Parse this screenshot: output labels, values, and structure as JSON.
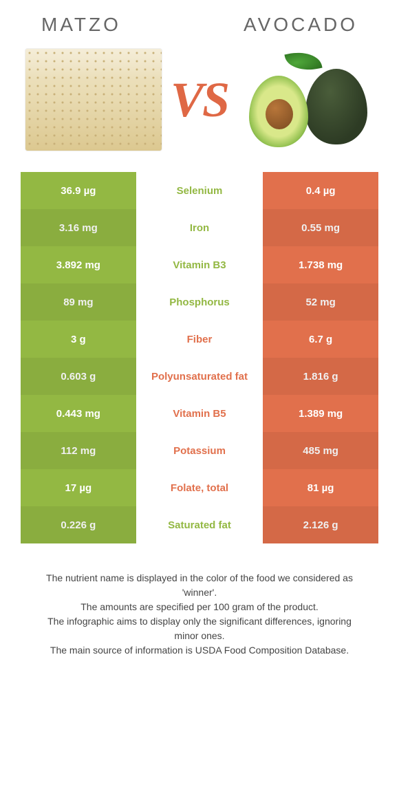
{
  "colors": {
    "left": "#93b843",
    "right": "#e1704c",
    "vs": "#df6845"
  },
  "header": {
    "left_title": "Matzo",
    "right_title": "Avocado",
    "vs_text": "VS"
  },
  "rows": [
    {
      "left": "36.9 µg",
      "label": "Selenium",
      "right": "0.4 µg",
      "winner": "left"
    },
    {
      "left": "3.16 mg",
      "label": "Iron",
      "right": "0.55 mg",
      "winner": "left"
    },
    {
      "left": "3.892 mg",
      "label": "Vitamin B3",
      "right": "1.738 mg",
      "winner": "left"
    },
    {
      "left": "89 mg",
      "label": "Phosphorus",
      "right": "52 mg",
      "winner": "left"
    },
    {
      "left": "3 g",
      "label": "Fiber",
      "right": "6.7 g",
      "winner": "right"
    },
    {
      "left": "0.603 g",
      "label": "Polyunsaturated fat",
      "right": "1.816 g",
      "winner": "right"
    },
    {
      "left": "0.443 mg",
      "label": "Vitamin B5",
      "right": "1.389 mg",
      "winner": "right"
    },
    {
      "left": "112 mg",
      "label": "Potassium",
      "right": "485 mg",
      "winner": "right"
    },
    {
      "left": "17 µg",
      "label": "Folate, total",
      "right": "81 µg",
      "winner": "right"
    },
    {
      "left": "0.226 g",
      "label": "Saturated fat",
      "right": "2.126 g",
      "winner": "left"
    }
  ],
  "footer": {
    "line1": "The nutrient name is displayed in the color of the food we considered as 'winner'.",
    "line2": "The amounts are specified per 100 gram of the product.",
    "line3": "The infographic aims to display only the significant differences, ignoring minor ones.",
    "line4": "The main source of information is USDA Food Composition Database."
  }
}
